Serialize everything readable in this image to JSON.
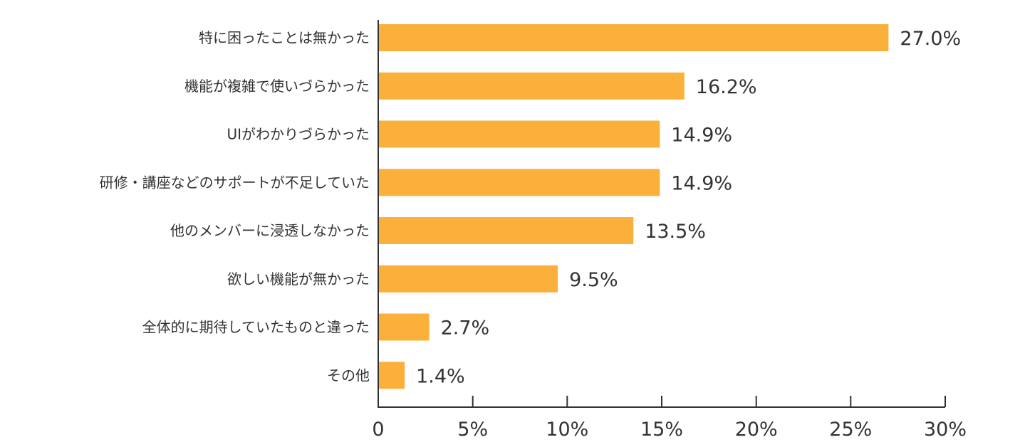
{
  "chart_data": {
    "type": "bar",
    "orientation": "horizontal",
    "title": "",
    "xlabel": "",
    "ylabel": "",
    "categories": [
      "特に困ったことは無かった",
      "機能が複雑で使いづらかった",
      "UIがわかりづらかった",
      "研修・講座などのサポートが不足していた",
      "他のメンバーに浸透しなかった",
      "欲しい機能が無かった",
      "全体的に期待していたものと違った",
      "その他"
    ],
    "values": [
      27.0,
      16.2,
      14.9,
      14.9,
      13.5,
      9.5,
      2.7,
      1.4
    ],
    "value_labels": [
      "27.0%",
      "16.2%",
      "14.9%",
      "14.9%",
      "13.5%",
      "9.5%",
      "2.7%",
      "1.4%"
    ],
    "xlim": [
      0,
      30
    ],
    "x_ticks": [
      0,
      5,
      10,
      15,
      20,
      25,
      30
    ],
    "x_tick_labels": [
      "0",
      "5%",
      "10%",
      "15%",
      "20%",
      "25%",
      "30%"
    ],
    "grid": false,
    "legend": "none",
    "bar_color": "#FBB03B",
    "text_color": "#333333",
    "axis_color": "#333333"
  }
}
